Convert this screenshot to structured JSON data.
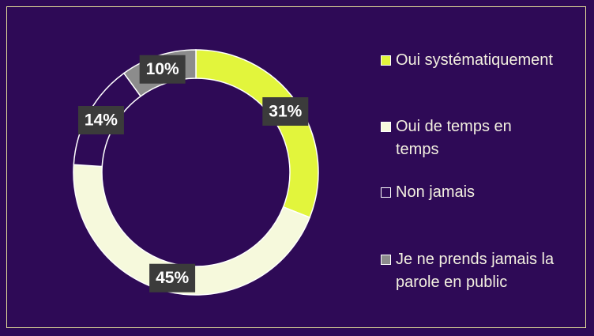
{
  "chart_data": {
    "type": "donut",
    "categories": [
      "Oui systématiquement",
      "Oui de temps en temps",
      "Non jamais",
      "Je ne prends jamais la parole en public"
    ],
    "values": [
      31,
      45,
      14,
      10
    ],
    "value_labels": [
      "31%",
      "45%",
      "14%",
      "10%"
    ],
    "colors": [
      "#e2f53c",
      "#f6f9dc",
      "#2e0a56",
      "#8c8c8c"
    ],
    "legend": "right"
  }
}
